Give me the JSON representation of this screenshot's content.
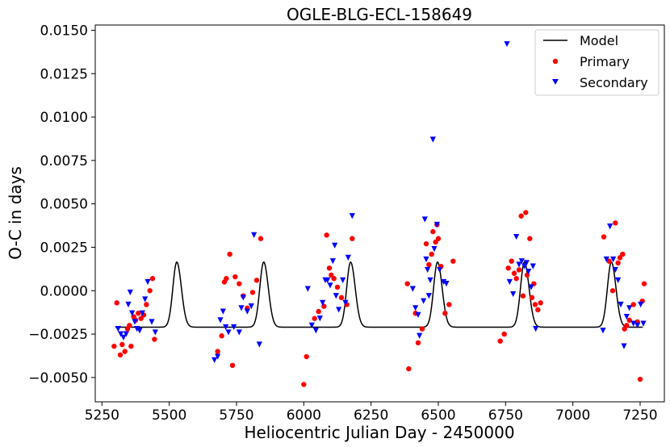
{
  "chart_data": {
    "type": "scatter",
    "title": "OGLE-BLG-ECL-158649",
    "xlabel": "Heliocentric Julian Day - 2450000",
    "ylabel": "O-C in days",
    "xlim": [
      5225,
      7340
    ],
    "ylim": [
      -0.0064,
      0.0153
    ],
    "xticks": [
      5250,
      5500,
      5750,
      6000,
      6250,
      6500,
      6750,
      7000,
      7250
    ],
    "xtick_labels": [
      "5250",
      "5500",
      "5750",
      "6000",
      "6250",
      "6500",
      "6750",
      "7000",
      "7250"
    ],
    "yticks": [
      -0.005,
      -0.0025,
      0.0,
      0.0025,
      0.005,
      0.0075,
      0.01,
      0.0125,
      0.015
    ],
    "ytick_labels": [
      "−0.0050",
      "−0.0025",
      "0.0000",
      "0.0025",
      "0.0050",
      "0.0075",
      "0.0100",
      "0.0125",
      "0.0150"
    ],
    "legend": {
      "position": "top-right",
      "entries": [
        {
          "label": "Model",
          "marker": "line",
          "color": "#000000"
        },
        {
          "label": "Primary",
          "marker": "circle",
          "color": "#ff0000"
        },
        {
          "label": "Secondary",
          "marker": "triangle-down",
          "color": "#0000ff"
        }
      ]
    },
    "model": {
      "name": "Model",
      "color": "#000000",
      "period": 323,
      "peak_x": 5528,
      "min": -0.0021,
      "max": 0.00165,
      "width": 0.075,
      "x_range": [
        5300,
        7260
      ]
    },
    "series": [
      {
        "name": "Primary",
        "color": "#ff0000",
        "marker": "circle",
        "points": [
          [
            5295,
            -0.0032
          ],
          [
            5305,
            -0.0007
          ],
          [
            5318,
            -0.0037
          ],
          [
            5325,
            -0.0031
          ],
          [
            5335,
            -0.0035
          ],
          [
            5345,
            -0.0022
          ],
          [
            5352,
            -0.002
          ],
          [
            5358,
            -0.0032
          ],
          [
            5368,
            -0.0015
          ],
          [
            5375,
            -0.0017
          ],
          [
            5385,
            -0.0013
          ],
          [
            5395,
            -0.0016
          ],
          [
            5405,
            -0.0014
          ],
          [
            5415,
            -0.0008
          ],
          [
            5428,
            0.0
          ],
          [
            5438,
            0.0007
          ],
          [
            5445,
            -0.0028
          ],
          [
            5680,
            -0.0035
          ],
          [
            5695,
            -0.0026
          ],
          [
            5705,
            0.0005
          ],
          [
            5712,
            0.0007
          ],
          [
            5725,
            0.0021
          ],
          [
            5735,
            -0.0043
          ],
          [
            5745,
            0.0008
          ],
          [
            5760,
            0.0004
          ],
          [
            5775,
            -0.0003
          ],
          [
            5790,
            -0.001
          ],
          [
            5810,
            -0.0001
          ],
          [
            5825,
            0.0006
          ],
          [
            5840,
            0.003
          ],
          [
            6000,
            -0.0054
          ],
          [
            6010,
            -0.0038
          ],
          [
            6040,
            -0.0016
          ],
          [
            6055,
            -0.0012
          ],
          [
            6075,
            -0.0009
          ],
          [
            6085,
            0.0032
          ],
          [
            6095,
            0.0013
          ],
          [
            6102,
            0.0009
          ],
          [
            6112,
            0.0007
          ],
          [
            6125,
            0.0002
          ],
          [
            6140,
            -0.0004
          ],
          [
            6160,
            -0.0008
          ],
          [
            6180,
            0.003
          ],
          [
            6385,
            0.0004
          ],
          [
            6390,
            -0.0045
          ],
          [
            6415,
            -0.0013
          ],
          [
            6425,
            -0.003
          ],
          [
            6440,
            -0.0022
          ],
          [
            6455,
            0.0027
          ],
          [
            6465,
            0.0015
          ],
          [
            6475,
            0.0021
          ],
          [
            6480,
            0.0034
          ],
          [
            6490,
            0.0028
          ],
          [
            6495,
            0.0038
          ],
          [
            6500,
            0.003
          ],
          [
            6510,
            0.0014
          ],
          [
            6525,
            -0.0013
          ],
          [
            6540,
            -0.0008
          ],
          [
            6555,
            0.0017
          ],
          [
            6730,
            -0.0029
          ],
          [
            6745,
            -0.0025
          ],
          [
            6760,
            0.0013
          ],
          [
            6772,
            0.0017
          ],
          [
            6782,
            0.001
          ],
          [
            6790,
            0.0007
          ],
          [
            6800,
            0.0012
          ],
          [
            6808,
            0.0043
          ],
          [
            6815,
            -0.0003
          ],
          [
            6825,
            0.0045
          ],
          [
            6830,
            0.0009
          ],
          [
            6840,
            0.003
          ],
          [
            6848,
            -0.0004
          ],
          [
            6855,
            0.0004
          ],
          [
            6860,
            -0.0008
          ],
          [
            6870,
            -0.0011
          ],
          [
            6880,
            -0.0007
          ],
          [
            7115,
            0.0031
          ],
          [
            7135,
            0.0017
          ],
          [
            7148,
            0.0
          ],
          [
            7158,
            0.0039
          ],
          [
            7168,
            0.0016
          ],
          [
            7175,
            0.0019
          ],
          [
            7185,
            0.0021
          ],
          [
            7192,
            -0.0022
          ],
          [
            7200,
            -0.002
          ],
          [
            7210,
            -0.0017
          ],
          [
            7225,
            -0.0008
          ],
          [
            7240,
            -0.0018
          ],
          [
            7250,
            -0.0051
          ],
          [
            7258,
            -0.0006
          ],
          [
            7265,
            0.0004
          ]
        ]
      },
      {
        "name": "Secondary",
        "color": "#0000ff",
        "marker": "triangle-down",
        "points": [
          [
            5310,
            -0.0022
          ],
          [
            5320,
            -0.0025
          ],
          [
            5330,
            -0.0027
          ],
          [
            5340,
            -0.0025
          ],
          [
            5348,
            -0.0008
          ],
          [
            5355,
            -0.0001
          ],
          [
            5362,
            -0.0013
          ],
          [
            5372,
            -0.0018
          ],
          [
            5380,
            -0.0022
          ],
          [
            5390,
            -0.0023
          ],
          [
            5400,
            -0.0013
          ],
          [
            5410,
            -0.0005
          ],
          [
            5420,
            0.0005
          ],
          [
            5435,
            -0.0018
          ],
          [
            5448,
            -0.0024
          ],
          [
            5668,
            -0.004
          ],
          [
            5680,
            -0.0038
          ],
          [
            5690,
            -0.0017
          ],
          [
            5700,
            -0.0012
          ],
          [
            5710,
            -0.0021
          ],
          [
            5720,
            -0.0024
          ],
          [
            5740,
            -0.0021
          ],
          [
            5760,
            -0.0024
          ],
          [
            5768,
            -0.001
          ],
          [
            5775,
            -0.0004
          ],
          [
            5790,
            -0.0012
          ],
          [
            5805,
            -0.0009
          ],
          [
            5815,
            0.0032
          ],
          [
            5835,
            -0.0031
          ],
          [
            6015,
            0.0001
          ],
          [
            6030,
            -0.002
          ],
          [
            6045,
            -0.0023
          ],
          [
            6060,
            -0.0016
          ],
          [
            6070,
            -0.0007
          ],
          [
            6080,
            0.0006
          ],
          [
            6088,
            0.0006
          ],
          [
            6098,
            0.0003
          ],
          [
            6108,
            0.0017
          ],
          [
            6115,
            0.0026
          ],
          [
            6120,
            -0.0003
          ],
          [
            6130,
            -0.0011
          ],
          [
            6145,
            0.0006
          ],
          [
            6155,
            -0.0007
          ],
          [
            6165,
            0.0019
          ],
          [
            6180,
            0.0043
          ],
          [
            6405,
            0.0001
          ],
          [
            6415,
            -0.001
          ],
          [
            6425,
            -0.0014
          ],
          [
            6430,
            -0.0026
          ],
          [
            6445,
            -0.0006
          ],
          [
            6450,
            0.0041
          ],
          [
            6455,
            0.0018
          ],
          [
            6460,
            0.0012
          ],
          [
            6465,
            -0.0003
          ],
          [
            6470,
            0.0006
          ],
          [
            6480,
            0.0087
          ],
          [
            6485,
            0.0024
          ],
          [
            6495,
            0.0038
          ],
          [
            6505,
            0.0012
          ],
          [
            6520,
            0.0005
          ],
          [
            6530,
            0.0004
          ],
          [
            6755,
            0.0142
          ],
          [
            6765,
            0.0005
          ],
          [
            6778,
            -0.0002
          ],
          [
            6790,
            0.0031
          ],
          [
            6800,
            0.0015
          ],
          [
            6810,
            0.0017
          ],
          [
            6820,
            0.0014
          ],
          [
            6828,
            0.0016
          ],
          [
            6835,
            0.0011
          ],
          [
            6845,
            0.0002
          ],
          [
            6852,
            0.0014
          ],
          [
            6862,
            -0.0022
          ],
          [
            7112,
            -0.0023
          ],
          [
            7125,
            0.0018
          ],
          [
            7138,
            0.0037
          ],
          [
            7150,
            0.0018
          ],
          [
            7158,
            0.0012
          ],
          [
            7168,
            0.0006
          ],
          [
            7178,
            -0.0008
          ],
          [
            7190,
            -0.0032
          ],
          [
            7200,
            -0.0015
          ],
          [
            7210,
            -0.001
          ],
          [
            7225,
            -0.0019
          ],
          [
            7240,
            -0.002
          ],
          [
            7252,
            -0.0008
          ],
          [
            7262,
            -0.0019
          ]
        ]
      }
    ]
  }
}
